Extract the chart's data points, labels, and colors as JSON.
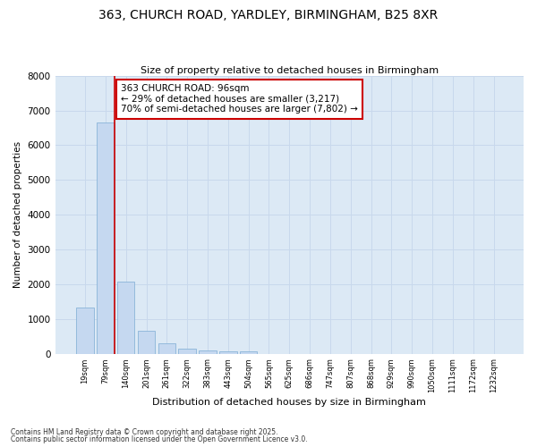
{
  "title_line1": "363, CHURCH ROAD, YARDLEY, BIRMINGHAM, B25 8XR",
  "title_line2": "Size of property relative to detached houses in Birmingham",
  "xlabel": "Distribution of detached houses by size in Birmingham",
  "ylabel": "Number of detached properties",
  "categories": [
    "19sqm",
    "79sqm",
    "140sqm",
    "201sqm",
    "261sqm",
    "322sqm",
    "383sqm",
    "443sqm",
    "504sqm",
    "565sqm",
    "625sqm",
    "686sqm",
    "747sqm",
    "807sqm",
    "868sqm",
    "929sqm",
    "990sqm",
    "1050sqm",
    "1111sqm",
    "1172sqm",
    "1232sqm"
  ],
  "values": [
    1340,
    6650,
    2080,
    650,
    310,
    155,
    90,
    60,
    55,
    0,
    0,
    0,
    0,
    0,
    0,
    0,
    0,
    0,
    0,
    0,
    0
  ],
  "bar_color": "#c5d8f0",
  "bar_edge_color": "#8ab4d8",
  "vline_color": "#cc0000",
  "annotation_text": "363 CHURCH ROAD: 96sqm\n← 29% of detached houses are smaller (3,217)\n70% of semi-detached houses are larger (7,802) →",
  "annotation_box_edge_color": "#cc0000",
  "ylim": [
    0,
    8000
  ],
  "yticks": [
    0,
    1000,
    2000,
    3000,
    4000,
    5000,
    6000,
    7000,
    8000
  ],
  "grid_color": "#c8d8ec",
  "bg_color": "#dce9f5",
  "footer_line1": "Contains HM Land Registry data © Crown copyright and database right 2025.",
  "footer_line2": "Contains public sector information licensed under the Open Government Licence v3.0."
}
